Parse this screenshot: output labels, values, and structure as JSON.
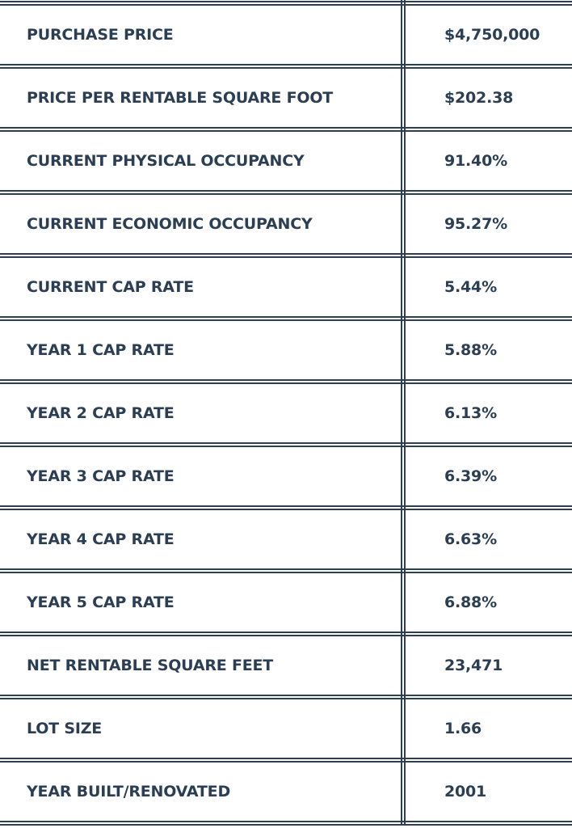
{
  "table": {
    "rows": [
      [
        "PURCHASE PRICE",
        "$4,750,000"
      ],
      [
        "PRICE PER RENTABLE SQUARE FOOT",
        "$202.38"
      ],
      [
        "CURRENT PHYSICAL OCCUPANCY",
        "91.40%"
      ],
      [
        "CURRENT ECONOMIC OCCUPANCY",
        "95.27%"
      ],
      [
        "CURRENT CAP RATE",
        "5.44%"
      ],
      [
        "YEAR 1 CAP RATE",
        "5.88%"
      ],
      [
        "YEAR 2 CAP RATE",
        "6.13%"
      ],
      [
        "YEAR 3 CAP RATE",
        "6.39%"
      ],
      [
        "YEAR 4 CAP RATE",
        "6.63%"
      ],
      [
        "YEAR 5 CAP RATE",
        "6.88%"
      ],
      [
        "NET RENTABLE SQUARE FEET",
        "23,471"
      ],
      [
        "LOT SIZE",
        "1.66"
      ],
      [
        "YEAR BUILT/RENOVATED",
        "2001"
      ]
    ]
  }
}
